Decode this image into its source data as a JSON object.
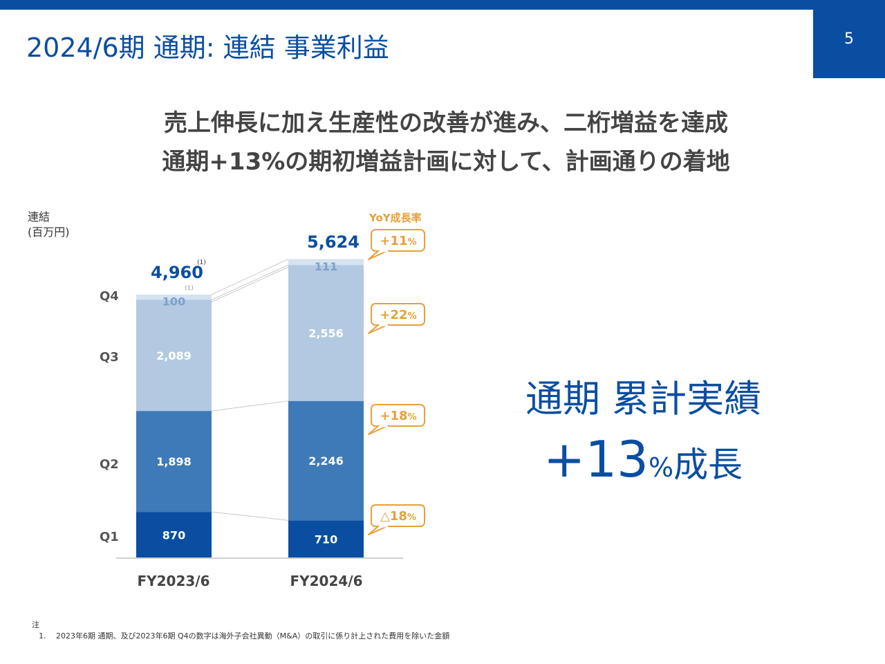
{
  "header": {
    "title": "2024/6期 通期: 連結 事業利益",
    "page_number": "5"
  },
  "headline": {
    "line1": "売上伸長に加え生産性の改善が進み、二桁増益を達成",
    "line2": "通期+13%の期初増益計画に対して、計画通りの着地"
  },
  "unit_label": {
    "line1": "連結",
    "line2": "(百万円)"
  },
  "yoy_title": "YoY成長率",
  "summary": {
    "title": "通期 累計実績",
    "value": "+13",
    "pct": "%",
    "word": "成長"
  },
  "footnote": {
    "heading": "注",
    "item": "1.　 2023年6期 通期、及び2023年6期 Q4の数字は海外子会社異動（M&A）の取引に係り計上された費用を除いた金額"
  },
  "chart_data": {
    "type": "bar",
    "stacked": true,
    "categories": [
      "FY2023/6",
      "FY2024/6"
    ],
    "series": [
      {
        "name": "Q1",
        "values": [
          870,
          710
        ],
        "labels": [
          "870",
          "710"
        ],
        "color": "#0a4ea2"
      },
      {
        "name": "Q2",
        "values": [
          1898,
          2246
        ],
        "labels": [
          "1,898",
          "2,246"
        ],
        "color": "#3f7ab8"
      },
      {
        "name": "Q3",
        "values": [
          2089,
          2556
        ],
        "labels": [
          "2,089",
          "2,556"
        ],
        "color": "#b3c9e2"
      },
      {
        "name": "Q4",
        "values": [
          100,
          111
        ],
        "labels": [
          "100",
          "111"
        ],
        "color": "#d5e2f0"
      }
    ],
    "totals": [
      "4,960",
      "5,624"
    ],
    "total_footnote_mark": "(1)",
    "q4_footnote_mark": "(1)",
    "yoy": [
      {
        "quarter": "Q4",
        "sign": "+",
        "value": "11",
        "unit": "%"
      },
      {
        "quarter": "Q3",
        "sign": "+",
        "value": "22",
        "unit": "%"
      },
      {
        "quarter": "Q2",
        "sign": "+",
        "value": "18",
        "unit": "%"
      },
      {
        "quarter": "Q1",
        "sign": "△",
        "value": "18",
        "unit": "%"
      }
    ],
    "ylim": [
      0,
      6000
    ]
  }
}
